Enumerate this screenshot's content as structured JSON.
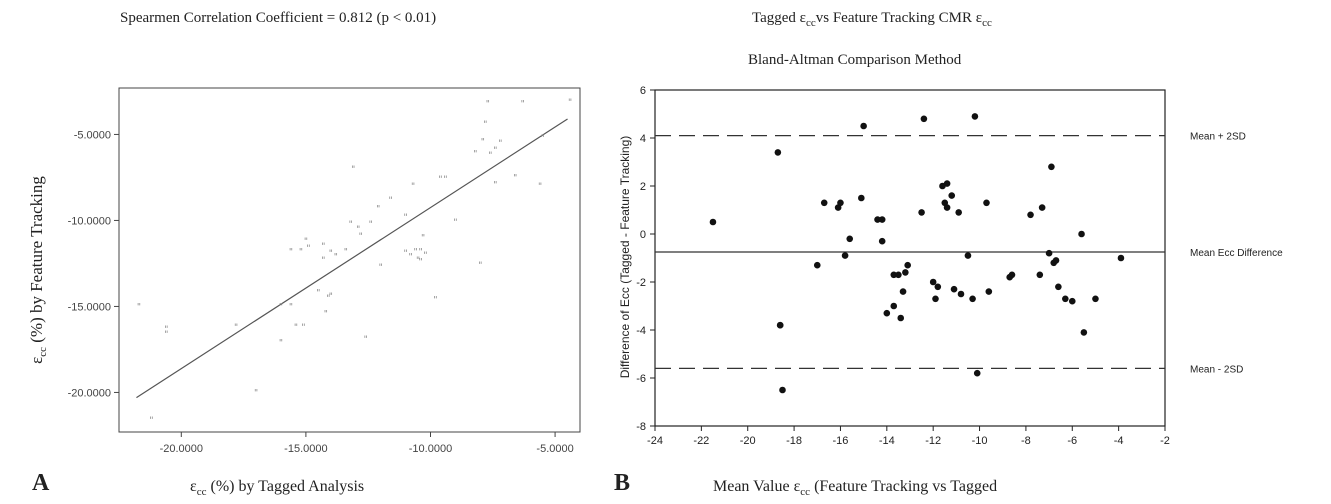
{
  "panel_a": {
    "letter": "A",
    "title": "Spearmen Correlation Coefficient = 0.812 (p < 0.01)",
    "ylabel_prefix": "ε",
    "ylabel_sub": "cc",
    "ylabel_rest": " (%) by Feature Tracking",
    "xlabel_prefix": "ε",
    "xlabel_sub": "cc",
    "xlabel_rest": " (%) by Tagged Analysis"
  },
  "panel_b": {
    "letter": "B",
    "title_line1_a": "Tagged ε",
    "title_line1_sub1": "cc",
    "title_line1_b": "vs Feature Tracking CMR ε",
    "title_line1_sub2": "cc",
    "title_line2": "Bland-Altman Comparison Method",
    "xlabel_prefix": "Mean Value ε",
    "xlabel_sub": "cc",
    "xlabel_rest": " (Feature Tracking vs Tagged",
    "ylabel": "Difference of Ecc (Tagged - Feature Tracking)"
  },
  "chart_data": [
    {
      "type": "scatter",
      "xlim": [
        -22.5,
        -4
      ],
      "ylim": [
        -22.3,
        -2.3
      ],
      "x_ticks": [
        -20,
        -15,
        -10,
        -5
      ],
      "x_tick_labels": [
        "-20.0000",
        "-15.0000",
        "-10.0000",
        "-5.0000"
      ],
      "y_ticks": [
        -5,
        -10,
        -15,
        -20
      ],
      "y_tick_labels": [
        "-5.0000",
        "-10.0000",
        "-15.0000",
        "-20.0000"
      ],
      "fit_line": [
        [
          -21.8,
          -20.3
        ],
        [
          -4.5,
          -4.1
        ]
      ],
      "points": [
        [
          -21.7,
          -15.0
        ],
        [
          -21.2,
          -21.6
        ],
        [
          -20.6,
          -16.6
        ],
        [
          -20.6,
          -16.3
        ],
        [
          -17.8,
          -16.2
        ],
        [
          -17.0,
          -20.0
        ],
        [
          -16.0,
          -17.1
        ],
        [
          -16.0,
          -15.0
        ],
        [
          -15.6,
          -15.0
        ],
        [
          -15.6,
          -11.8
        ],
        [
          -15.4,
          -16.2
        ],
        [
          -15.2,
          -11.8
        ],
        [
          -15.1,
          -16.2
        ],
        [
          -15.0,
          -11.2
        ],
        [
          -14.9,
          -11.6
        ],
        [
          -14.5,
          -14.2
        ],
        [
          -14.3,
          -11.5
        ],
        [
          -14.3,
          -12.3
        ],
        [
          -14.2,
          -15.4
        ],
        [
          -14.1,
          -14.5
        ],
        [
          -14.0,
          -14.4
        ],
        [
          -14.0,
          -11.9
        ],
        [
          -13.8,
          -12.1
        ],
        [
          -13.4,
          -11.8
        ],
        [
          -13.2,
          -10.2
        ],
        [
          -13.1,
          -7.0
        ],
        [
          -12.9,
          -10.5
        ],
        [
          -12.8,
          -10.9
        ],
        [
          -12.6,
          -16.9
        ],
        [
          -12.4,
          -10.2
        ],
        [
          -12.1,
          -9.3
        ],
        [
          -12.0,
          -12.7
        ],
        [
          -11.6,
          -8.8
        ],
        [
          -11.0,
          -9.8
        ],
        [
          -11.0,
          -11.9
        ],
        [
          -10.8,
          -12.1
        ],
        [
          -10.7,
          -8.0
        ],
        [
          -10.6,
          -11.8
        ],
        [
          -10.5,
          -12.3
        ],
        [
          -10.4,
          -11.8
        ],
        [
          -10.4,
          -12.4
        ],
        [
          -10.3,
          -11.0
        ],
        [
          -10.2,
          -12.0
        ],
        [
          -9.8,
          -14.6
        ],
        [
          -9.6,
          -7.6
        ],
        [
          -9.4,
          -7.6
        ],
        [
          -9.0,
          -10.1
        ],
        [
          -8.2,
          -6.1
        ],
        [
          -8.0,
          -12.6
        ],
        [
          -7.9,
          -5.4
        ],
        [
          -7.8,
          -4.4
        ],
        [
          -7.7,
          -3.2
        ],
        [
          -7.6,
          -6.2
        ],
        [
          -7.4,
          -5.9
        ],
        [
          -7.4,
          -7.9
        ],
        [
          -7.2,
          -5.5
        ],
        [
          -6.6,
          -7.5
        ],
        [
          -6.3,
          -3.2
        ],
        [
          -5.6,
          -8.0
        ],
        [
          -5.5,
          -5.2
        ],
        [
          -4.4,
          -3.1
        ]
      ]
    },
    {
      "type": "scatter",
      "xlim": [
        -24,
        -2
      ],
      "ylim": [
        -8,
        6
      ],
      "x_ticks": [
        -24,
        -22,
        -20,
        -18,
        -16,
        -14,
        -12,
        -10,
        -8,
        -6,
        -4,
        -2
      ],
      "y_ticks": [
        6,
        4,
        2,
        0,
        -2,
        -4,
        -6,
        -8
      ],
      "reference_lines": [
        {
          "label": "Mean + 2SD",
          "value": 4.1,
          "style": "dashed"
        },
        {
          "label": "Mean Ecc Difference",
          "value": -0.75,
          "style": "solid"
        },
        {
          "label": "Mean - 2SD",
          "value": -5.6,
          "style": "dashed"
        }
      ],
      "points": [
        [
          -21.5,
          0.5
        ],
        [
          -18.7,
          3.4
        ],
        [
          -18.6,
          -3.8
        ],
        [
          -18.6,
          -3.8
        ],
        [
          -18.5,
          -6.5
        ],
        [
          -17.0,
          -1.3
        ],
        [
          -16.7,
          1.3
        ],
        [
          -16.1,
          1.1
        ],
        [
          -16.0,
          1.3
        ],
        [
          -15.8,
          -0.9
        ],
        [
          -15.6,
          -0.2
        ],
        [
          -15.1,
          1.5
        ],
        [
          -15.0,
          4.5
        ],
        [
          -14.4,
          0.6
        ],
        [
          -14.2,
          0.6
        ],
        [
          -14.2,
          -0.3
        ],
        [
          -14.0,
          -3.3
        ],
        [
          -13.7,
          -3.0
        ],
        [
          -13.7,
          -1.7
        ],
        [
          -13.5,
          -1.7
        ],
        [
          -13.4,
          -3.5
        ],
        [
          -13.3,
          -2.4
        ],
        [
          -13.2,
          -1.6
        ],
        [
          -13.1,
          -1.3
        ],
        [
          -12.5,
          0.9
        ],
        [
          -12.4,
          4.8
        ],
        [
          -12.0,
          -2.0
        ],
        [
          -11.9,
          -2.7
        ],
        [
          -11.8,
          -2.2
        ],
        [
          -11.6,
          2.0
        ],
        [
          -11.5,
          1.3
        ],
        [
          -11.4,
          2.1
        ],
        [
          -11.4,
          1.1
        ],
        [
          -11.2,
          1.6
        ],
        [
          -11.1,
          -2.3
        ],
        [
          -10.9,
          0.9
        ],
        [
          -10.8,
          -2.5
        ],
        [
          -10.5,
          -0.9
        ],
        [
          -10.2,
          4.9
        ],
        [
          -10.3,
          -2.7
        ],
        [
          -10.1,
          -5.8
        ],
        [
          -9.7,
          1.3
        ],
        [
          -9.6,
          -2.4
        ],
        [
          -8.7,
          -1.8
        ],
        [
          -8.6,
          -1.7
        ],
        [
          -7.8,
          0.8
        ],
        [
          -7.4,
          -1.7
        ],
        [
          -7.3,
          1.1
        ],
        [
          -7.0,
          -0.8
        ],
        [
          -6.9,
          2.8
        ],
        [
          -6.8,
          -1.2
        ],
        [
          -6.7,
          -1.1
        ],
        [
          -6.6,
          -2.2
        ],
        [
          -6.3,
          -2.7
        ],
        [
          -6.0,
          -2.8
        ],
        [
          -5.6,
          0.0
        ],
        [
          -5.5,
          -4.1
        ],
        [
          -5.0,
          -2.7
        ],
        [
          -3.9,
          -1.0
        ]
      ]
    }
  ]
}
